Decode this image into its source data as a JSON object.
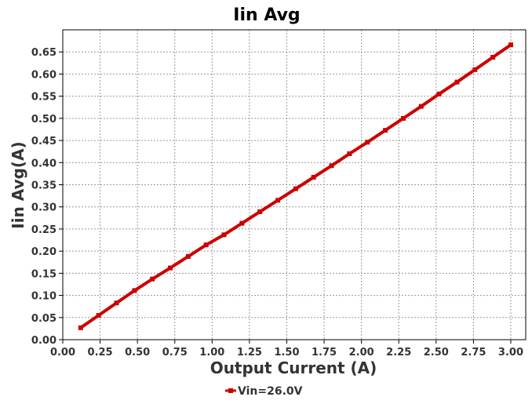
{
  "chart_data": {
    "type": "line",
    "title": "Iin Avg",
    "xlabel": "Output Current (A)",
    "ylabel": "Iin Avg(A)",
    "xlim": [
      0.0,
      3.1
    ],
    "ylim": [
      0.0,
      0.7
    ],
    "x_ticks": [
      "0.00",
      "0.25",
      "0.50",
      "0.75",
      "1.00",
      "1.25",
      "1.50",
      "1.75",
      "2.00",
      "2.25",
      "2.50",
      "2.75",
      "3.00"
    ],
    "y_ticks": [
      "0.00",
      "0.05",
      "0.10",
      "0.15",
      "0.20",
      "0.25",
      "0.30",
      "0.35",
      "0.40",
      "0.45",
      "0.50",
      "0.55",
      "0.60",
      "0.65"
    ],
    "grid": true,
    "legend_position": "bottom-center",
    "series": [
      {
        "name": "Vin=26.0V",
        "color": "#cc0000",
        "x": [
          0.12,
          0.24,
          0.36,
          0.48,
          0.6,
          0.72,
          0.84,
          0.96,
          1.08,
          1.2,
          1.32,
          1.44,
          1.56,
          1.68,
          1.8,
          1.92,
          2.04,
          2.16,
          2.28,
          2.4,
          2.52,
          2.64,
          2.76,
          2.88,
          3.0
        ],
        "y": [
          0.027,
          0.055,
          0.083,
          0.111,
          0.137,
          0.162,
          0.188,
          0.214,
          0.237,
          0.263,
          0.289,
          0.315,
          0.341,
          0.367,
          0.393,
          0.42,
          0.446,
          0.473,
          0.5,
          0.527,
          0.555,
          0.582,
          0.61,
          0.638,
          0.666
        ]
      }
    ]
  }
}
